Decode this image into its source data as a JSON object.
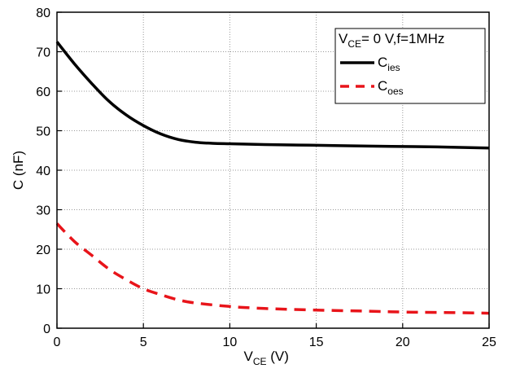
{
  "chart_data": {
    "type": "line",
    "xlabel": "V",
    "xlabel_sub": "CE",
    "xlabel_unit": " (V)",
    "ylabel": "C (nF)",
    "xlim": [
      0,
      25
    ],
    "ylim": [
      0,
      80
    ],
    "x_ticks": [
      "0",
      "5",
      "10",
      "15",
      "20",
      "25"
    ],
    "y_ticks": [
      "0",
      "10",
      "20",
      "30",
      "40",
      "50",
      "60",
      "70",
      "80"
    ],
    "grid": true,
    "legend_position": "top-right",
    "legend_title": {
      "main": "V",
      "sub": "CE",
      "rest": "= 0 V,f=1MHz"
    },
    "series": [
      {
        "name": "C",
        "name_sub": "ies",
        "color": "#000000",
        "style": "solid",
        "x": [
          0,
          1,
          2,
          3,
          4,
          5,
          6,
          7,
          8,
          9,
          10,
          12,
          15,
          18,
          20,
          22,
          25
        ],
        "y": [
          72.5,
          67,
          62,
          57.5,
          54,
          51.3,
          49.2,
          47.8,
          47.1,
          46.8,
          46.7,
          46.5,
          46.3,
          46.1,
          46.0,
          45.9,
          45.6
        ]
      },
      {
        "name": "C",
        "name_sub": "oes",
        "color": "#e8141a",
        "style": "dashed",
        "x": [
          0,
          1,
          2,
          3,
          4,
          5,
          6,
          7,
          8,
          10,
          12,
          15,
          18,
          20,
          22,
          25
        ],
        "y": [
          26.5,
          22,
          18.5,
          15,
          12.3,
          10,
          8.5,
          7.2,
          6.4,
          5.5,
          5.0,
          4.6,
          4.3,
          4.1,
          4.0,
          3.8
        ]
      }
    ]
  }
}
